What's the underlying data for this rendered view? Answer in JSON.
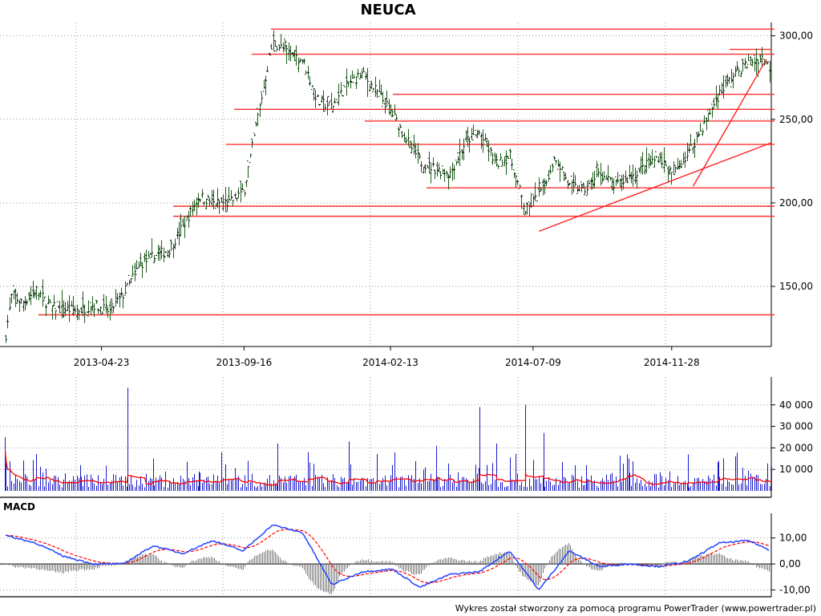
{
  "title": "NEUCA",
  "footer": "Wykres został stworzony za pomocą programu PowerTrader (www.powertrader.pl)",
  "colors": {
    "hline": "#ff3030",
    "trend": "#ff2020",
    "price": "#1a5c1a",
    "volume": "#1a1acc",
    "volume_avg": "#ff0000",
    "macd": "#2244ff",
    "signal": "#ff0000",
    "hist": "#808080",
    "grid": "#999999"
  },
  "chart_data": [
    {
      "type": "line",
      "title": "NEUCA",
      "series": [
        {
          "x": [
            "2013-01-14",
            "2013-01-21",
            "2013-02-01",
            "2013-02-15",
            "2013-03-01",
            "2013-03-15",
            "2013-04-01",
            "2013-04-15",
            "2013-05-01",
            "2013-05-15",
            "2013-06-01",
            "2013-06-15",
            "2013-07-01",
            "2013-07-15",
            "2013-08-01",
            "2013-08-15",
            "2013-09-01",
            "2013-09-16",
            "2013-10-01",
            "2013-10-15",
            "2013-11-01",
            "2013-11-15",
            "2013-12-01",
            "2013-12-15",
            "2014-01-01",
            "2014-01-15",
            "2014-02-01",
            "2014-02-15",
            "2014-03-01",
            "2014-03-15",
            "2014-04-01",
            "2014-04-15",
            "2014-05-01",
            "2014-05-15",
            "2014-06-01",
            "2014-06-15",
            "2014-07-01",
            "2014-07-15",
            "2014-08-01",
            "2014-08-15",
            "2014-09-01",
            "2014-09-15",
            "2014-10-01",
            "2014-10-15",
            "2014-11-01",
            "2014-11-15",
            "2014-11-28",
            "2014-12-15",
            "2015-01-01",
            "2015-01-15",
            "2015-02-01",
            "2015-02-15",
            "2015-03-01",
            "2015-03-10"
          ],
          "values": [
            118,
            145,
            140,
            148,
            138,
            136,
            136,
            139,
            135,
            145,
            163,
            168,
            172,
            186,
            204,
            200,
            200,
            208,
            255,
            296,
            290,
            285,
            260,
            258,
            272,
            277,
            265,
            253,
            238,
            225,
            220,
            218,
            237,
            242,
            223,
            228,
            195,
            205,
            228,
            210,
            208,
            218,
            210,
            215,
            222,
            228,
            216,
            230,
            248,
            265,
            278,
            284,
            287,
            280
          ]
        }
      ],
      "ylim": [
        115,
        308
      ],
      "yticks": [
        "150,00",
        "200,00",
        "250,00",
        "300,00"
      ],
      "xticks": [
        "2013-04-23",
        "2013-09-16",
        "2014-02-13",
        "2014-07-09",
        "2014-11-28"
      ],
      "hlines": [
        304,
        289,
        265,
        256,
        249,
        235,
        209,
        198,
        192,
        133
      ],
      "trendlines": [
        {
          "from": [
            "2014-07-15",
            183
          ],
          "to": [
            "2015-03-10",
            236
          ]
        },
        {
          "from": [
            "2014-12-20",
            210
          ],
          "to": [
            "2015-03-05",
            286
          ]
        }
      ]
    },
    {
      "type": "bar",
      "title": "",
      "ylim": [
        0,
        50000
      ],
      "yticks": [
        "10 000",
        "20 000",
        "30 000",
        "40 000"
      ],
      "series": [
        {
          "name": "volume",
          "x": [
            "2013-01-14",
            "2013-02-15",
            "2013-04-01",
            "2013-05-20",
            "2013-06-15",
            "2013-08-01",
            "2013-09-20",
            "2013-10-20",
            "2013-11-20",
            "2014-01-01",
            "2014-02-15",
            "2014-04-01",
            "2014-05-15",
            "2014-06-01",
            "2014-07-01",
            "2014-07-20",
            "2014-09-01",
            "2014-10-15",
            "2014-12-15",
            "2015-01-15",
            "2015-03-10"
          ],
          "values": [
            25000,
            9000,
            12000,
            48000,
            15000,
            9000,
            14000,
            22000,
            18000,
            23000,
            12000,
            21000,
            39000,
            22000,
            40000,
            27000,
            12000,
            15000,
            17000,
            14000,
            11000
          ]
        }
      ]
    },
    {
      "type": "line",
      "title": "MACD",
      "ylim": [
        -12,
        17
      ],
      "yticks": [
        "-10,00",
        "0,00",
        "10,00"
      ],
      "series": [
        {
          "name": "MACD",
          "x": [
            "2013-01-14",
            "2013-02-15",
            "2013-03-15",
            "2013-04-15",
            "2013-05-15",
            "2013-06-15",
            "2013-07-15",
            "2013-08-15",
            "2013-09-15",
            "2013-10-15",
            "2013-11-15",
            "2013-12-15",
            "2014-01-15",
            "2014-02-15",
            "2014-03-15",
            "2014-04-15",
            "2014-05-15",
            "2014-06-15",
            "2014-07-15",
            "2014-08-15",
            "2014-09-15",
            "2014-10-15",
            "2014-11-15",
            "2014-12-15",
            "2015-01-15",
            "2015-02-15",
            "2015-03-10"
          ],
          "values": [
            11,
            8,
            3,
            0,
            0,
            7,
            4,
            9,
            5,
            15,
            12,
            -8,
            -3,
            -2,
            -9,
            -4,
            -3,
            5,
            -10,
            5,
            -1,
            0,
            -1,
            1,
            8,
            9,
            5
          ]
        }
      ]
    }
  ]
}
